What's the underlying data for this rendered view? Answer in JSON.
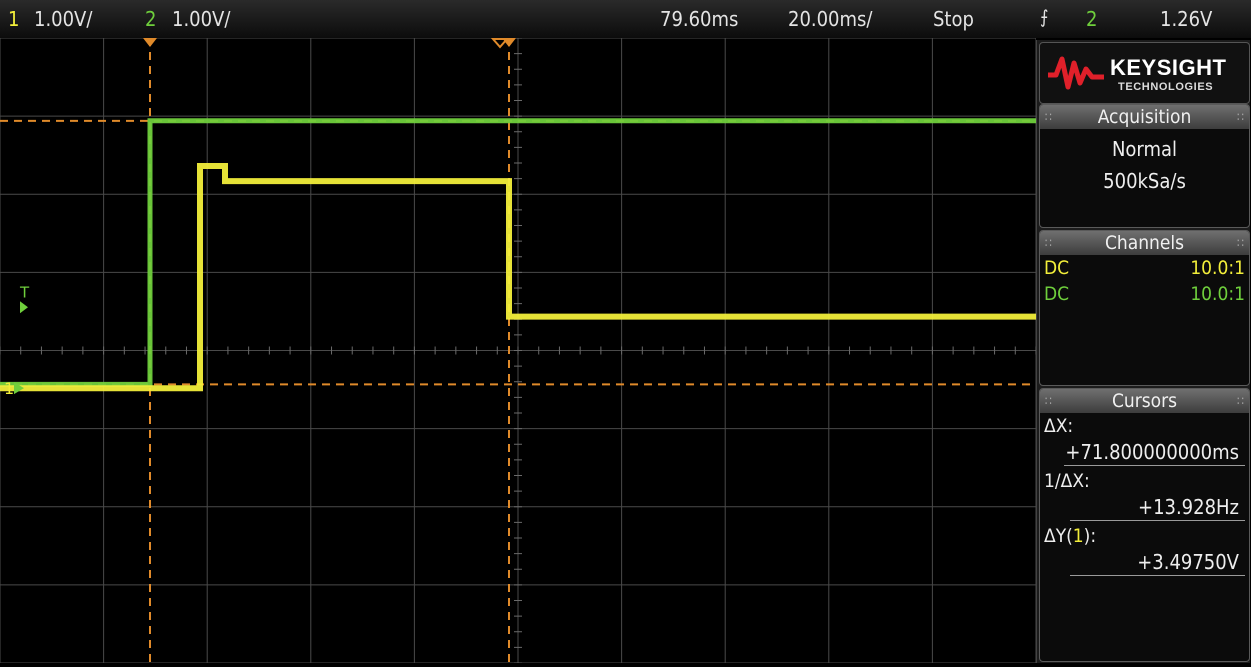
{
  "topbar": {
    "ch1_num": "1",
    "ch1_scale": "1.00V/",
    "ch2_num": "2",
    "ch2_scale": "1.00V/",
    "delay": "79.60ms",
    "timebase": "20.00ms/",
    "run_state": "Stop",
    "trigger_slope_icon": "rising-edge-icon",
    "trigger_source": "2",
    "trigger_level": "1.26V"
  },
  "brand": {
    "name": "KEYSIGHT",
    "sub": "TECHNOLOGIES"
  },
  "acquisition": {
    "title": "Acquisition",
    "mode": "Normal",
    "rate": "500kSa/s"
  },
  "channels": {
    "title": "Channels",
    "rows": [
      {
        "coupling": "DC",
        "probe": "10.0:1",
        "color": "#f2ee3a"
      },
      {
        "coupling": "DC",
        "probe": "10.0:1",
        "color": "#6fcf3c"
      }
    ]
  },
  "cursors": {
    "title": "Cursors",
    "dx_label": "ΔX:",
    "dx_value": "+71.800000000ms",
    "inv_dx_label": "1/ΔX:",
    "inv_dx_value": "+13.928Hz",
    "dy_label_pre": "ΔY(",
    "dy_label_ch": "1",
    "dy_label_post": "):",
    "dy_value": "+3.49750V"
  },
  "screen": {
    "trigger_marker": "T",
    "ch1_ground_marker": "1",
    "colors": {
      "ch1": "#f2ee3a",
      "ch2": "#6fcf3c",
      "cursor": "#e08a2a",
      "grid": "#4a4a4a"
    }
  },
  "chart_data": {
    "type": "line",
    "x_unit": "ms",
    "y_unit": "V",
    "xlim": [
      -20.4,
      186.8
    ],
    "ylim": [
      -3.65,
      4.65
    ],
    "grid": true,
    "series": [
      {
        "x": [
          -20.4,
          9.6,
          9.6,
          186.8
        ],
        "y": [
          0.05,
          0.05,
          3.55,
          3.55
        ]
      },
      {
        "x": [
          -20.4,
          19.6,
          19.6,
          24.6,
          24.6,
          81.4,
          81.4,
          186.8
        ],
        "y": [
          0.0,
          0.0,
          2.95,
          2.95,
          2.75,
          2.75,
          0.95,
          0.95
        ]
      }
    ],
    "cursors": {
      "x": [
        9.6,
        81.4
      ],
      "y": [
        0.05,
        3.55
      ]
    }
  }
}
